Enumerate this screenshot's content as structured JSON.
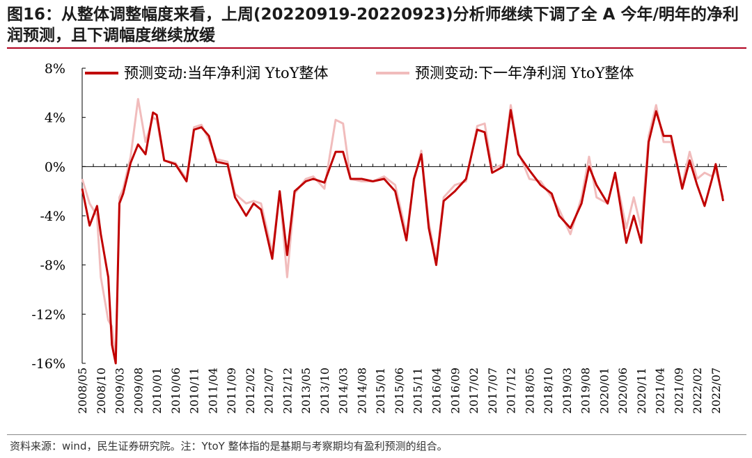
{
  "title": "图16：从整体调整幅度来看，上周(20220919-20220923)分析师继续下调了全 A 今年/明年的净利润预测，且下调幅度继续放缓",
  "source": "资料来源：wind，民生证券研究院。注：YtoY 整体指的是基期与考察期均有盈利预测的组合。",
  "colors": {
    "accent": "#b0001e",
    "series1": "#c00000",
    "series2": "#f1bcbc"
  },
  "chart_data": {
    "type": "line",
    "title": "",
    "xlabel": "",
    "ylabel": "",
    "ylim": [
      -0.16,
      0.08
    ],
    "y_tick_values": [
      0.08,
      0.04,
      0,
      -0.04,
      -0.08,
      -0.12,
      -0.16
    ],
    "y_tick_labels": [
      "8%",
      "4%",
      "0%",
      "-4%",
      "-8%",
      "-12%",
      "-16%"
    ],
    "x_tick_labels": [
      "2008/05",
      "2008/10",
      "2009/03",
      "2009/08",
      "2010/01",
      "2010/06",
      "2010/11",
      "2011/04",
      "2011/09",
      "2012/02",
      "2012/07",
      "2012/12",
      "2013/05",
      "2013/10",
      "2014/03",
      "2014/08",
      "2015/01",
      "2015/06",
      "2015/11",
      "2016/04",
      "2016/09",
      "2017/02",
      "2017/07",
      "2017/12",
      "2018/05",
      "2018/10",
      "2019/03",
      "2019/08",
      "2020/01",
      "2020/06",
      "2020/11",
      "2021/04",
      "2021/09",
      "2022/02",
      "2022/07"
    ],
    "legend_position": "top",
    "grid": false,
    "series": [
      {
        "name": "预测变动:当年净利润 YtoY整体",
        "color": "#c00000",
        "x": [
          "2008/05",
          "2008/07",
          "2008/09",
          "2008/10",
          "2008/12",
          "2009/01",
          "2009/02",
          "2009/03",
          "2009/04",
          "2009/06",
          "2009/08",
          "2009/10",
          "2009/12",
          "2010/01",
          "2010/03",
          "2010/06",
          "2010/09",
          "2010/11",
          "2011/01",
          "2011/03",
          "2011/05",
          "2011/08",
          "2011/10",
          "2012/01",
          "2012/03",
          "2012/05",
          "2012/08",
          "2012/10",
          "2012/12",
          "2013/02",
          "2013/05",
          "2013/07",
          "2013/10",
          "2014/01",
          "2014/03",
          "2014/05",
          "2014/08",
          "2014/11",
          "2015/02",
          "2015/05",
          "2015/08",
          "2015/10",
          "2015/12",
          "2016/02",
          "2016/04",
          "2016/06",
          "2016/09",
          "2016/12",
          "2017/03",
          "2017/05",
          "2017/07",
          "2017/10",
          "2017/12",
          "2018/02",
          "2018/05",
          "2018/08",
          "2018/11",
          "2019/01",
          "2019/04",
          "2019/07",
          "2019/09",
          "2019/11",
          "2020/02",
          "2020/04",
          "2020/07",
          "2020/09",
          "2020/11",
          "2021/01",
          "2021/03",
          "2021/05",
          "2021/07",
          "2021/10",
          "2021/12",
          "2022/02",
          "2022/04",
          "2022/06",
          "2022/07",
          "2022/09"
        ],
        "values": [
          -0.018,
          -0.048,
          -0.032,
          -0.055,
          -0.09,
          -0.145,
          -0.16,
          -0.03,
          -0.022,
          0.003,
          0.018,
          0.01,
          0.044,
          0.042,
          0.005,
          0.002,
          -0.012,
          0.03,
          0.032,
          0.025,
          0.004,
          0.002,
          -0.025,
          -0.04,
          -0.03,
          -0.035,
          -0.075,
          -0.02,
          -0.072,
          -0.02,
          -0.012,
          -0.01,
          -0.013,
          0.012,
          0.012,
          -0.01,
          -0.01,
          -0.012,
          -0.01,
          -0.02,
          -0.06,
          -0.01,
          0.01,
          -0.05,
          -0.08,
          -0.028,
          -0.02,
          -0.01,
          0.03,
          0.028,
          -0.005,
          0.0,
          0.046,
          0.01,
          -0.003,
          -0.015,
          -0.022,
          -0.04,
          -0.05,
          -0.03,
          0.0,
          -0.015,
          -0.03,
          -0.005,
          -0.062,
          -0.04,
          -0.062,
          0.02,
          0.045,
          0.025,
          0.025,
          -0.018,
          0.005,
          -0.015,
          -0.032,
          -0.01,
          0.002,
          -0.028
        ]
      },
      {
        "name": "预测变动:下一年净利润 YtoY整体",
        "color": "#f1bcbc",
        "x": [
          "2008/05",
          "2008/07",
          "2008/09",
          "2008/10",
          "2008/12",
          "2009/01",
          "2009/02",
          "2009/03",
          "2009/04",
          "2009/06",
          "2009/08",
          "2009/10",
          "2009/12",
          "2010/01",
          "2010/03",
          "2010/06",
          "2010/09",
          "2010/11",
          "2011/01",
          "2011/03",
          "2011/05",
          "2011/08",
          "2011/10",
          "2012/01",
          "2012/03",
          "2012/05",
          "2012/08",
          "2012/10",
          "2012/12",
          "2013/02",
          "2013/05",
          "2013/07",
          "2013/10",
          "2014/01",
          "2014/03",
          "2014/05",
          "2014/08",
          "2014/11",
          "2015/02",
          "2015/05",
          "2015/08",
          "2015/10",
          "2015/12",
          "2016/02",
          "2016/04",
          "2016/06",
          "2016/09",
          "2016/12",
          "2017/03",
          "2017/05",
          "2017/07",
          "2017/10",
          "2017/12",
          "2018/02",
          "2018/05",
          "2018/08",
          "2018/11",
          "2019/01",
          "2019/04",
          "2019/07",
          "2019/09",
          "2019/11",
          "2020/02",
          "2020/04",
          "2020/07",
          "2020/09",
          "2020/11",
          "2021/01",
          "2021/03",
          "2021/05",
          "2021/07",
          "2021/10",
          "2021/12",
          "2022/02",
          "2022/04",
          "2022/06",
          "2022/07",
          "2022/09"
        ],
        "values": [
          -0.01,
          -0.03,
          -0.04,
          -0.09,
          -0.125,
          -0.13,
          -0.16,
          -0.025,
          -0.018,
          0.008,
          0.055,
          0.02,
          0.04,
          0.038,
          0.005,
          0.003,
          -0.01,
          0.032,
          0.034,
          0.022,
          0.006,
          0.004,
          -0.022,
          -0.03,
          -0.028,
          -0.03,
          -0.07,
          -0.02,
          -0.09,
          -0.022,
          -0.01,
          -0.008,
          -0.018,
          0.038,
          0.035,
          -0.01,
          -0.012,
          -0.012,
          -0.008,
          -0.015,
          -0.055,
          -0.012,
          0.013,
          -0.045,
          -0.078,
          -0.025,
          -0.015,
          -0.012,
          0.033,
          0.035,
          -0.002,
          0.002,
          0.05,
          0.012,
          -0.01,
          -0.012,
          -0.025,
          -0.035,
          -0.055,
          -0.025,
          0.008,
          -0.025,
          -0.03,
          -0.005,
          -0.05,
          -0.025,
          -0.05,
          0.025,
          0.05,
          0.02,
          0.02,
          -0.015,
          0.012,
          -0.01,
          -0.005,
          -0.008,
          -0.003,
          -0.025
        ]
      }
    ]
  }
}
